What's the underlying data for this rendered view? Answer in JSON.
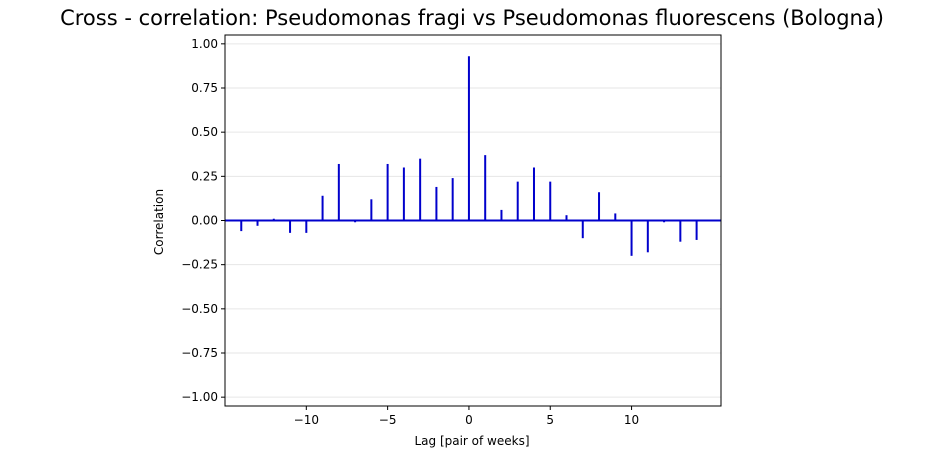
{
  "chart_data": {
    "type": "bar",
    "title": "Cross - correlation: Pseudomonas fragi vs Pseudomonas fluorescens (Bologna)",
    "xlabel": "Lag [pair of weeks]",
    "ylabel": "Correlation",
    "xlim": [
      -15,
      15.5
    ],
    "ylim": [
      -1.05,
      1.05
    ],
    "xticks": [
      -10,
      -5,
      0,
      5,
      10
    ],
    "xtick_labels": [
      "−10",
      "−5",
      "0",
      "5",
      "10"
    ],
    "yticks": [
      -1.0,
      -0.75,
      -0.5,
      -0.25,
      0.0,
      0.25,
      0.5,
      0.75,
      1.0
    ],
    "ytick_labels": [
      "−1.00",
      "−0.75",
      "−0.50",
      "−0.25",
      "0.00",
      "0.25",
      "0.50",
      "0.75",
      "1.00"
    ],
    "grid": "horizontal",
    "color": "#0000cc",
    "baseline": 0,
    "x": [
      -14,
      -13,
      -12,
      -11,
      -10,
      -9,
      -8,
      -7,
      -6,
      -5,
      -4,
      -3,
      -2,
      -1,
      0,
      1,
      2,
      3,
      4,
      5,
      6,
      7,
      8,
      9,
      10,
      11,
      12,
      13,
      14
    ],
    "values": [
      -0.06,
      -0.03,
      0.01,
      -0.07,
      -0.07,
      0.14,
      0.32,
      -0.01,
      0.12,
      0.32,
      0.3,
      0.35,
      0.19,
      0.24,
      0.93,
      0.37,
      0.06,
      0.22,
      0.3,
      0.22,
      0.03,
      -0.1,
      0.16,
      0.04,
      -0.2,
      -0.18,
      -0.01,
      -0.12,
      -0.11
    ]
  }
}
